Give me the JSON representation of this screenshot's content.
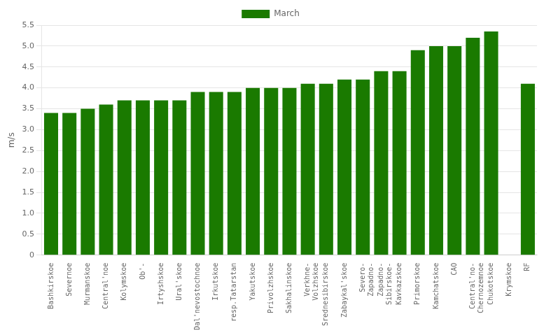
{
  "chart_data": {
    "type": "bar",
    "categories": [
      "Bashkirskoe",
      "Severnoe",
      "Murmanskoe",
      "Central'noe",
      "Kolymskoe",
      "Ob'-",
      "Irtyshskoe",
      "Ural'skoe",
      "Dal'nevostochnoe",
      "Irkutskoe",
      "resp.Tatarstan",
      "Yakutskoe",
      "Privolzhskoe",
      "Sakhalinskoe",
      "Verkhne-\nVolzhskoe",
      "Srednesibirskoe",
      "Zabaykal'skoe",
      "Severo-\nZapadno-",
      "Zapadno-\nSibirskoe-",
      "Kavkazskoe",
      "Primorskoe",
      "Kamchatskoe",
      "CAO",
      "Central'no-\nChernozemnoe",
      "Chukotskoe",
      "Krymskoe",
      "RF"
    ],
    "series": [
      {
        "name": "March",
        "color": "#1a7a00",
        "values": [
          3.4,
          3.4,
          3.5,
          3.6,
          3.7,
          3.7,
          3.7,
          3.7,
          3.9,
          3.9,
          3.9,
          4.0,
          4.0,
          4.0,
          4.1,
          4.1,
          4.2,
          4.2,
          4.4,
          4.4,
          4.9,
          5.0,
          5.0,
          5.2,
          5.35,
          0.0,
          4.1
        ]
      }
    ],
    "ylabel": "m/s",
    "ylim": [
      0,
      5.5
    ],
    "yticks": [
      0,
      0.5,
      {
        "value": 1.0,
        "label": "1.0"
      },
      1.5,
      {
        "value": 2.0,
        "label": "2.0"
      },
      2.5,
      {
        "value": 3.0,
        "label": "3.0"
      },
      3.5,
      {
        "value": 4.0,
        "label": "4.0"
      },
      4.5,
      {
        "value": 5.0,
        "label": "5.0"
      },
      5.5
    ],
    "grid": true,
    "legend": "top"
  }
}
